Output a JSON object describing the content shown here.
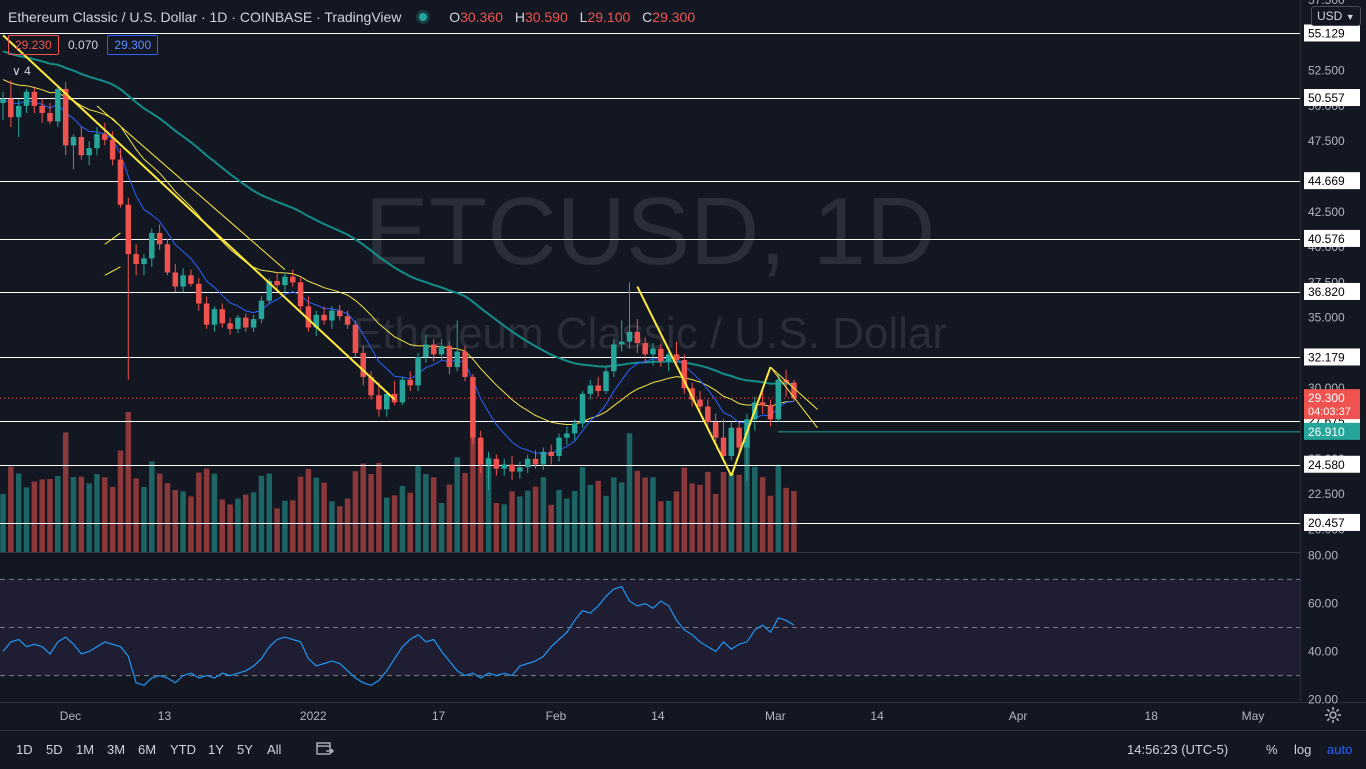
{
  "header": {
    "symbol_title": "Ethereum Classic / U.S. Dollar · 1D · COINBASE · TradingView",
    "ohlc": [
      {
        "k": "O",
        "v": "30.360"
      },
      {
        "k": "H",
        "v": "30.590"
      },
      {
        "k": "L",
        "v": "29.100"
      },
      {
        "k": "C",
        "v": "29.300"
      }
    ],
    "bid": "29.230",
    "spread": "0.070",
    "ask": "29.300",
    "indicator_toggle": "4",
    "currency_selector": "USD"
  },
  "watermark": {
    "symbol": "ETCUSD, 1D",
    "name": "Ethereum Classic / U.S. Dollar"
  },
  "bottom_bar": {
    "timeframes": [
      "1D",
      "5D",
      "1M",
      "3M",
      "6M",
      "YTD",
      "1Y",
      "5Y",
      "All"
    ],
    "clock": "14:56:23 (UTC-5)",
    "percent": "%",
    "log": "log",
    "auto": "auto",
    "icons": [
      "calendar-range-icon",
      "settings-gear-icon"
    ]
  },
  "colors": {
    "background": "#131722",
    "up": "#26a69a",
    "down": "#ef5350",
    "ema_fast": "#2962ff",
    "ema_mid": "#f5e148",
    "sma_slow": "#138d8a",
    "trendline": "#ffeb3b",
    "rsi": "#2196f3",
    "level_line": "#ffffff",
    "last_price": "#ef5350",
    "support_tag": "#26a69a"
  },
  "chart_data": [
    {
      "type": "candlestick",
      "title": "Ethereum Classic / U.S. Dollar · 1D · COINBASE",
      "x_start": "2021-11-22",
      "x_end": "2022-05-07",
      "x_ticks": [
        {
          "date": "2021-12-01",
          "label": "Dec"
        },
        {
          "date": "2021-12-13",
          "label": "13"
        },
        {
          "date": "2022-01-01",
          "label": "2022"
        },
        {
          "date": "2022-01-17",
          "label": "17"
        },
        {
          "date": "2022-02-01",
          "label": "Feb"
        },
        {
          "date": "2022-02-14",
          "label": "14"
        },
        {
          "date": "2022-03-01",
          "label": "Mar"
        },
        {
          "date": "2022-03-14",
          "label": "14"
        },
        {
          "date": "2022-04-01",
          "label": "Apr"
        },
        {
          "date": "2022-04-18",
          "label": "18"
        },
        {
          "date": "2022-05-01",
          "label": "May"
        }
      ],
      "y_range": [
        18.4,
        57.5
      ],
      "y_ticks": [
        "57.500",
        "55.000",
        "52.500",
        "50.000",
        "47.500",
        "45.000",
        "42.500",
        "40.000",
        "37.500",
        "35.000",
        "32.500",
        "30.000",
        "27.500",
        "25.000",
        "22.500",
        "20.000"
      ],
      "horizontal_levels": [
        "55.129",
        "50.557",
        "44.669",
        "40.576",
        "36.820",
        "32.179",
        "27.675",
        "24.580",
        "20.457"
      ],
      "last_price": {
        "value": "29.300",
        "countdown": "04:03:37"
      },
      "support_tag": "26.910",
      "candles_ohlc": [
        [
          50.2,
          51.0,
          49.0,
          50.5
        ],
        [
          50.5,
          51.8,
          48.5,
          49.2
        ],
        [
          49.2,
          50.5,
          47.8,
          50.0
        ],
        [
          50.0,
          51.2,
          49.5,
          51.0
        ],
        [
          51.0,
          51.3,
          49.5,
          50.0
        ],
        [
          50.0,
          50.5,
          48.8,
          49.5
        ],
        [
          49.5,
          50.2,
          48.7,
          48.9
        ],
        [
          48.9,
          51.5,
          48.5,
          51.2
        ],
        [
          51.2,
          51.7,
          46.5,
          47.2
        ],
        [
          47.2,
          48.0,
          45.5,
          47.8
        ],
        [
          47.8,
          48.5,
          46.2,
          46.5
        ],
        [
          46.5,
          47.5,
          45.8,
          47.0
        ],
        [
          47.0,
          48.5,
          46.5,
          48.0
        ],
        [
          48.0,
          48.8,
          47.2,
          47.6
        ],
        [
          47.6,
          48.2,
          45.8,
          46.2
        ],
        [
          46.2,
          47.0,
          42.8,
          43.0
        ],
        [
          43.0,
          43.5,
          30.6,
          39.5
        ],
        [
          39.5,
          40.2,
          38.0,
          38.8
        ],
        [
          38.8,
          39.5,
          38.0,
          39.2
        ],
        [
          39.2,
          41.3,
          38.6,
          41.0
        ],
        [
          41.0,
          41.6,
          39.8,
          40.2
        ],
        [
          40.2,
          40.6,
          38.0,
          38.2
        ],
        [
          38.2,
          38.8,
          36.8,
          37.2
        ],
        [
          37.2,
          38.5,
          36.8,
          38.0
        ],
        [
          38.0,
          38.4,
          37.2,
          37.4
        ],
        [
          37.4,
          37.8,
          35.5,
          36.0
        ],
        [
          36.0,
          36.5,
          34.2,
          34.5
        ],
        [
          34.5,
          35.8,
          34.0,
          35.6
        ],
        [
          35.6,
          36.0,
          34.3,
          34.6
        ],
        [
          34.6,
          35.0,
          33.8,
          34.2
        ],
        [
          34.2,
          35.2,
          33.9,
          35.0
        ],
        [
          35.0,
          35.3,
          34.0,
          34.3
        ],
        [
          34.3,
          35.2,
          34.0,
          34.9
        ],
        [
          34.9,
          36.5,
          34.6,
          36.2
        ],
        [
          36.2,
          37.8,
          36.0,
          37.6
        ],
        [
          37.6,
          38.2,
          37.0,
          37.3
        ],
        [
          37.3,
          38.2,
          36.8,
          37.9
        ],
        [
          37.9,
          38.4,
          37.2,
          37.5
        ],
        [
          37.5,
          37.8,
          35.5,
          35.8
        ],
        [
          35.8,
          36.5,
          34.0,
          34.3
        ],
        [
          34.3,
          35.5,
          33.7,
          35.2
        ],
        [
          35.2,
          35.8,
          34.5,
          34.8
        ],
        [
          34.8,
          35.8,
          34.2,
          35.5
        ],
        [
          35.5,
          35.9,
          34.8,
          35.1
        ],
        [
          35.1,
          35.5,
          34.2,
          34.5
        ],
        [
          34.5,
          34.8,
          32.2,
          32.5
        ],
        [
          32.5,
          33.0,
          30.2,
          30.8
        ],
        [
          30.8,
          31.2,
          29.2,
          29.5
        ],
        [
          29.5,
          30.4,
          28.0,
          28.5
        ],
        [
          28.5,
          29.8,
          28.0,
          29.6
        ],
        [
          29.6,
          30.5,
          28.8,
          29.0
        ],
        [
          29.0,
          30.8,
          28.8,
          30.6
        ],
        [
          30.6,
          31.2,
          29.8,
          30.2
        ],
        [
          30.2,
          32.5,
          29.8,
          32.2
        ],
        [
          32.2,
          33.8,
          31.8,
          33.1
        ],
        [
          33.1,
          33.5,
          31.9,
          32.4
        ],
        [
          32.4,
          33.5,
          32.0,
          33.0
        ],
        [
          33.0,
          33.3,
          31.0,
          31.5
        ],
        [
          31.5,
          34.8,
          31.2,
          32.6
        ],
        [
          32.6,
          33.0,
          30.5,
          30.8
        ],
        [
          30.8,
          31.0,
          26.0,
          26.5
        ],
        [
          26.5,
          27.0,
          24.0,
          24.6
        ],
        [
          24.6,
          25.5,
          22.8,
          25.0
        ],
        [
          25.0,
          25.3,
          23.8,
          24.3
        ],
        [
          24.3,
          25.0,
          23.8,
          24.6
        ],
        [
          24.6,
          25.2,
          23.5,
          24.1
        ],
        [
          24.1,
          24.8,
          23.6,
          24.4
        ],
        [
          24.4,
          25.3,
          24.0,
          25.0
        ],
        [
          25.0,
          25.6,
          24.3,
          24.6
        ],
        [
          24.6,
          25.8,
          24.2,
          25.5
        ],
        [
          25.5,
          26.0,
          24.6,
          25.2
        ],
        [
          25.2,
          26.8,
          24.8,
          26.5
        ],
        [
          26.5,
          27.3,
          26.0,
          26.8
        ],
        [
          26.8,
          27.8,
          26.3,
          27.5
        ],
        [
          27.5,
          29.8,
          27.2,
          29.6
        ],
        [
          29.6,
          30.6,
          29.2,
          30.2
        ],
        [
          30.2,
          30.8,
          29.4,
          29.8
        ],
        [
          29.8,
          31.5,
          29.6,
          31.2
        ],
        [
          31.2,
          33.5,
          30.8,
          33.1
        ],
        [
          33.1,
          34.8,
          32.6,
          33.3
        ],
        [
          33.3,
          37.5,
          32.8,
          34.0
        ],
        [
          34.0,
          34.9,
          32.5,
          33.2
        ],
        [
          33.2,
          33.6,
          31.8,
          32.4
        ],
        [
          32.4,
          33.2,
          31.6,
          32.8
        ],
        [
          32.8,
          33.1,
          31.5,
          31.9
        ],
        [
          31.9,
          32.6,
          31.2,
          32.4
        ],
        [
          32.4,
          33.3,
          31.6,
          32.0
        ],
        [
          32.0,
          32.4,
          29.6,
          30.0
        ],
        [
          30.0,
          30.4,
          28.7,
          29.2
        ],
        [
          29.2,
          29.8,
          28.4,
          28.7
        ],
        [
          28.7,
          29.2,
          27.3,
          27.6
        ],
        [
          27.6,
          28.2,
          26.2,
          26.5
        ],
        [
          26.5,
          27.8,
          24.8,
          25.2
        ],
        [
          25.2,
          27.6,
          24.9,
          27.2
        ],
        [
          27.2,
          27.6,
          25.2,
          25.8
        ],
        [
          25.8,
          28.2,
          23.4,
          27.8
        ],
        [
          27.8,
          29.4,
          27.0,
          29.0
        ],
        [
          29.0,
          29.8,
          28.2,
          28.8
        ],
        [
          28.8,
          29.2,
          27.3,
          27.8
        ],
        [
          27.8,
          31.0,
          27.6,
          30.6
        ],
        [
          30.6,
          31.3,
          29.4,
          30.4
        ],
        [
          30.4,
          30.6,
          29.1,
          29.3
        ]
      ],
      "volume_note": "volume histogram bars colored by candle direction"
    },
    {
      "type": "line",
      "title": "RSI",
      "y_range": [
        19,
        81
      ],
      "y_ticks": [
        "80.00",
        "60.00",
        "40.00",
        "20.00"
      ],
      "band_upper": 70,
      "band_lower": 30,
      "midline": 50,
      "series": [
        {
          "values": [
            40,
            44,
            45,
            42,
            43,
            42,
            39,
            44,
            46,
            43,
            39,
            40,
            42,
            44,
            43,
            42,
            38,
            27,
            26,
            29,
            30,
            29,
            27,
            30,
            31,
            29,
            30,
            29,
            31,
            30,
            31,
            32,
            34,
            37,
            42,
            45,
            46,
            45,
            44,
            37,
            34,
            35,
            36,
            35,
            32,
            29,
            27,
            26,
            28,
            32,
            37,
            42,
            45,
            47,
            44,
            45,
            40,
            36,
            32,
            30,
            31,
            29,
            31,
            30,
            31,
            30,
            34,
            35,
            36,
            38,
            42,
            45,
            48,
            53,
            57,
            56,
            59,
            63,
            66,
            67,
            61,
            59,
            60,
            58,
            61,
            59,
            53,
            49,
            47,
            44,
            42,
            40,
            44,
            41,
            43,
            44,
            49,
            51,
            48,
            54,
            53,
            51
          ]
        }
      ]
    }
  ]
}
